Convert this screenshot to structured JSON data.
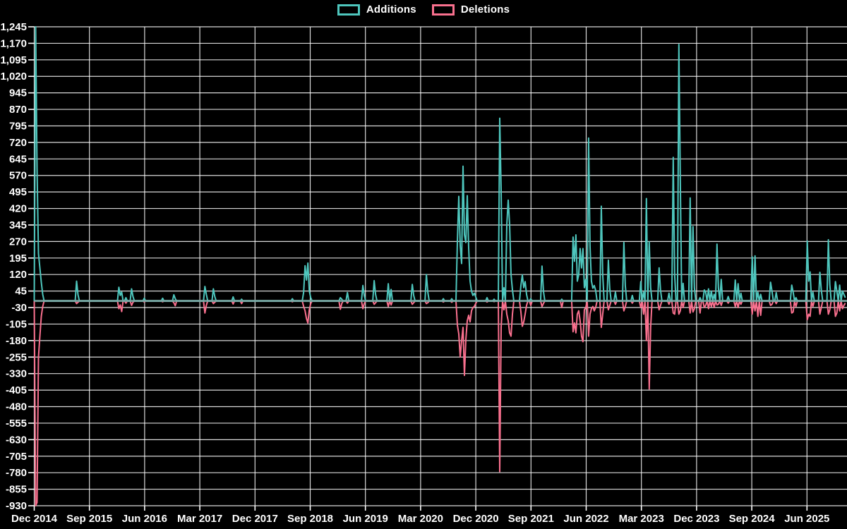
{
  "legend": {
    "additions_label": "Additions",
    "deletions_label": "Deletions"
  },
  "colors": {
    "background": "#000000",
    "additions": "#4ec6bd",
    "deletions": "#f9708e",
    "grid": "#ffffff",
    "text": "#ffffff",
    "zero_line": "#7caaa6"
  },
  "chart_data": {
    "type": "line",
    "title": "",
    "xlabel": "",
    "ylabel": "",
    "legend_position": "top-center",
    "grid": true,
    "series_names": [
      "Additions",
      "Deletions"
    ],
    "x_unit": "week",
    "n_weeks": 576,
    "baseline_value": 0,
    "ylim": [
      -930,
      1245
    ],
    "y_step": 75,
    "y_tick_values": [
      1245,
      1170,
      1095,
      1020,
      945,
      870,
      795,
      720,
      645,
      570,
      495,
      420,
      345,
      270,
      195,
      120,
      45,
      -30,
      -105,
      -180,
      -255,
      -330,
      -405,
      -480,
      -555,
      -630,
      -705,
      -780,
      -855,
      -930
    ],
    "y_tick_labels": [
      "1,245",
      "1,170",
      "1,095",
      "1,020",
      "945",
      "870",
      "795",
      "720",
      "645",
      "570",
      "495",
      "420",
      "345",
      "270",
      "195",
      "120",
      "45",
      "-30",
      "-105",
      "-180",
      "-255",
      "-330",
      "-405",
      "-480",
      "-555",
      "-630",
      "-705",
      "-780",
      "-855",
      "-930"
    ],
    "x_tick_labels": [
      "Dec 2014",
      "Sep 2015",
      "Jun 2016",
      "Mar 2017",
      "Dec 2017",
      "Sep 2018",
      "Jun 2019",
      "Mar 2020",
      "Dec 2020",
      "Sep 2021",
      "Jun 2022",
      "Mar 2023",
      "Dec 2023",
      "Sep 2024",
      "Jun 2025"
    ],
    "x_tick_every_weeks": 39.13,
    "spikes_format": "[week_index, additions, deletions] — all unlisted weeks are 0 / 0",
    "spikes": [
      [
        1,
        1245,
        -930
      ],
      [
        2,
        600,
        -915
      ],
      [
        3,
        215,
        -255
      ],
      [
        4,
        150,
        -160
      ],
      [
        5,
        85,
        -70
      ],
      [
        6,
        30,
        -25
      ],
      [
        30,
        90,
        -12
      ],
      [
        31,
        28,
        -6
      ],
      [
        60,
        62,
        -35
      ],
      [
        61,
        25,
        -18
      ],
      [
        62,
        40,
        -48
      ],
      [
        65,
        15,
        -10
      ],
      [
        69,
        55,
        -20
      ],
      [
        70,
        20,
        -6
      ],
      [
        78,
        12,
        -5
      ],
      [
        91,
        12,
        -4
      ],
      [
        99,
        28,
        -8
      ],
      [
        100,
        10,
        -22
      ],
      [
        121,
        66,
        -55
      ],
      [
        122,
        30,
        -20
      ],
      [
        127,
        55,
        -12
      ],
      [
        128,
        20,
        -6
      ],
      [
        141,
        18,
        -14
      ],
      [
        147,
        8,
        -12
      ],
      [
        183,
        10,
        -4
      ],
      [
        191,
        40,
        -25
      ],
      [
        192,
        160,
        -45
      ],
      [
        193,
        95,
        -80
      ],
      [
        194,
        172,
        -100
      ],
      [
        195,
        45,
        -40
      ],
      [
        196,
        15,
        -12
      ],
      [
        217,
        15,
        -38
      ],
      [
        218,
        8,
        -12
      ],
      [
        222,
        38,
        -10
      ],
      [
        233,
        70,
        -35
      ],
      [
        234,
        25,
        -12
      ],
      [
        241,
        92,
        -15
      ],
      [
        242,
        30,
        -8
      ],
      [
        251,
        78,
        -25
      ],
      [
        253,
        52,
        -18
      ],
      [
        268,
        75,
        -15
      ],
      [
        269,
        25,
        -8
      ],
      [
        278,
        120,
        -12
      ],
      [
        279,
        40,
        -8
      ],
      [
        290,
        10,
        -5
      ],
      [
        296,
        10,
        -6
      ],
      [
        300,
        270,
        -110
      ],
      [
        301,
        475,
        -150
      ],
      [
        302,
        250,
        -255
      ],
      [
        303,
        170,
        -180
      ],
      [
        304,
        612,
        -120
      ],
      [
        305,
        300,
        -338
      ],
      [
        306,
        265,
        -175
      ],
      [
        307,
        478,
        -90
      ],
      [
        308,
        240,
        -65
      ],
      [
        309,
        90,
        -95
      ],
      [
        310,
        45,
        -45
      ],
      [
        311,
        25,
        -30
      ],
      [
        312,
        35,
        -25
      ],
      [
        313,
        18,
        -12
      ],
      [
        321,
        15,
        -5
      ],
      [
        326,
        8,
        -3
      ],
      [
        330,
        830,
        -775
      ],
      [
        331,
        500,
        -120
      ],
      [
        333,
        60,
        -40
      ],
      [
        335,
        345,
        -60
      ],
      [
        336,
        458,
        -90
      ],
      [
        337,
        348,
        -145
      ],
      [
        338,
        120,
        -160
      ],
      [
        339,
        50,
        -60
      ],
      [
        345,
        70,
        -50
      ],
      [
        346,
        118,
        -115
      ],
      [
        347,
        60,
        -95
      ],
      [
        348,
        88,
        -60
      ],
      [
        349,
        30,
        -20
      ],
      [
        352,
        10,
        -20
      ],
      [
        360,
        158,
        -25
      ],
      [
        361,
        45,
        -12
      ],
      [
        374,
        8,
        -30
      ],
      [
        382,
        290,
        -140
      ],
      [
        383,
        180,
        -100
      ],
      [
        384,
        300,
        -145
      ],
      [
        385,
        90,
        -60
      ],
      [
        386,
        118,
        -45
      ],
      [
        387,
        238,
        -90
      ],
      [
        388,
        150,
        -160
      ],
      [
        389,
        238,
        -185
      ],
      [
        390,
        60,
        -40
      ],
      [
        391,
        98,
        -30
      ],
      [
        393,
        740,
        -160
      ],
      [
        394,
        250,
        -60
      ],
      [
        395,
        90,
        -35
      ],
      [
        396,
        58,
        -25
      ],
      [
        397,
        70,
        -45
      ],
      [
        398,
        48,
        -30
      ],
      [
        402,
        430,
        -120
      ],
      [
        403,
        120,
        -60
      ],
      [
        407,
        185,
        -40
      ],
      [
        408,
        55,
        -20
      ],
      [
        412,
        40,
        -15
      ],
      [
        418,
        265,
        -45
      ],
      [
        419,
        70,
        -25
      ],
      [
        424,
        25,
        -10
      ],
      [
        430,
        88,
        -30
      ],
      [
        432,
        40,
        -60
      ],
      [
        434,
        465,
        -180
      ],
      [
        436,
        268,
        -400
      ],
      [
        437,
        60,
        -120
      ],
      [
        443,
        150,
        -40
      ],
      [
        444,
        50,
        -20
      ],
      [
        450,
        35,
        -15
      ],
      [
        453,
        652,
        -55
      ],
      [
        454,
        120,
        -60
      ],
      [
        457,
        1165,
        -60
      ],
      [
        458,
        560,
        -45
      ],
      [
        460,
        80,
        -30
      ],
      [
        465,
        468,
        -55
      ],
      [
        467,
        338,
        -50
      ],
      [
        468,
        60,
        -35
      ],
      [
        472,
        15,
        -55
      ],
      [
        475,
        50,
        -30
      ],
      [
        476,
        40,
        -20
      ],
      [
        478,
        55,
        -35
      ],
      [
        480,
        45,
        -25
      ],
      [
        482,
        30,
        -30
      ],
      [
        484,
        258,
        -18
      ],
      [
        485,
        60,
        -15
      ],
      [
        487,
        98,
        -20
      ],
      [
        492,
        20,
        -10
      ],
      [
        497,
        95,
        -25
      ],
      [
        499,
        78,
        -30
      ],
      [
        501,
        35,
        -15
      ],
      [
        509,
        200,
        -60
      ],
      [
        511,
        205,
        -45
      ],
      [
        513,
        40,
        -70
      ],
      [
        515,
        30,
        -65
      ],
      [
        522,
        85,
        -20
      ],
      [
        523,
        45,
        -15
      ],
      [
        526,
        38,
        -12
      ],
      [
        537,
        72,
        -55
      ],
      [
        538,
        40,
        -50
      ],
      [
        540,
        15,
        -25
      ],
      [
        548,
        272,
        -85
      ],
      [
        549,
        90,
        -60
      ],
      [
        550,
        132,
        -70
      ],
      [
        552,
        40,
        -25
      ],
      [
        557,
        130,
        -60
      ],
      [
        558,
        50,
        -30
      ],
      [
        563,
        278,
        -60
      ],
      [
        564,
        75,
        -40
      ],
      [
        568,
        88,
        -70
      ],
      [
        569,
        45,
        -55
      ],
      [
        571,
        72,
        -45
      ],
      [
        573,
        45,
        -35
      ],
      [
        574,
        30,
        -20
      ],
      [
        575,
        15,
        -10
      ]
    ]
  }
}
